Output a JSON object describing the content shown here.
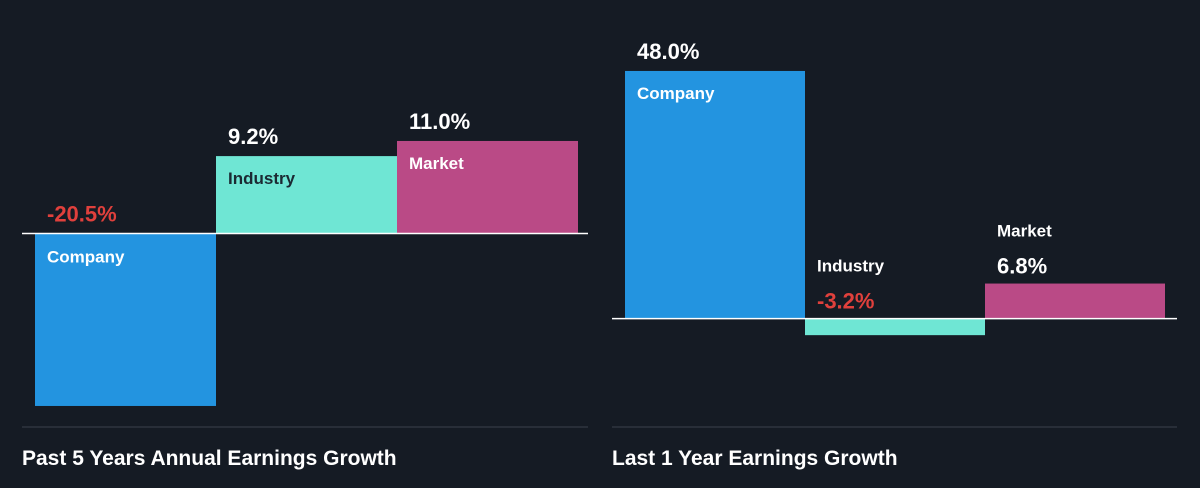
{
  "colors": {
    "background": "#151b24",
    "company": "#2394e0",
    "industry": "#6fe6d4",
    "market": "#ba4a86",
    "positive_text": "#ffffff",
    "negative_text": "#e0403c",
    "axis": "#ffffff",
    "baseline": "#3a414c"
  },
  "chart_data": [
    {
      "type": "bar",
      "title": "Past 5 Years Annual Earnings Growth",
      "categories": [
        "Company",
        "Industry",
        "Market"
      ],
      "values": [
        -20.5,
        9.2,
        11.0
      ],
      "value_labels": [
        "-20.5%",
        "9.2%",
        "11.0%"
      ],
      "series_colors": [
        "company",
        "industry",
        "market"
      ],
      "label_style": [
        "inside",
        "inside",
        "inside"
      ],
      "ylim": [
        -23,
        23
      ]
    },
    {
      "type": "bar",
      "title": "Last 1 Year Earnings Growth",
      "categories": [
        "Company",
        "Industry",
        "Market"
      ],
      "values": [
        48.0,
        -3.2,
        6.8
      ],
      "value_labels": [
        "48.0%",
        "-3.2%",
        "6.8%"
      ],
      "series_colors": [
        "company",
        "industry",
        "market"
      ],
      "label_style": [
        "inside",
        "above",
        "above"
      ],
      "ylim": [
        -21,
        54
      ]
    }
  ]
}
